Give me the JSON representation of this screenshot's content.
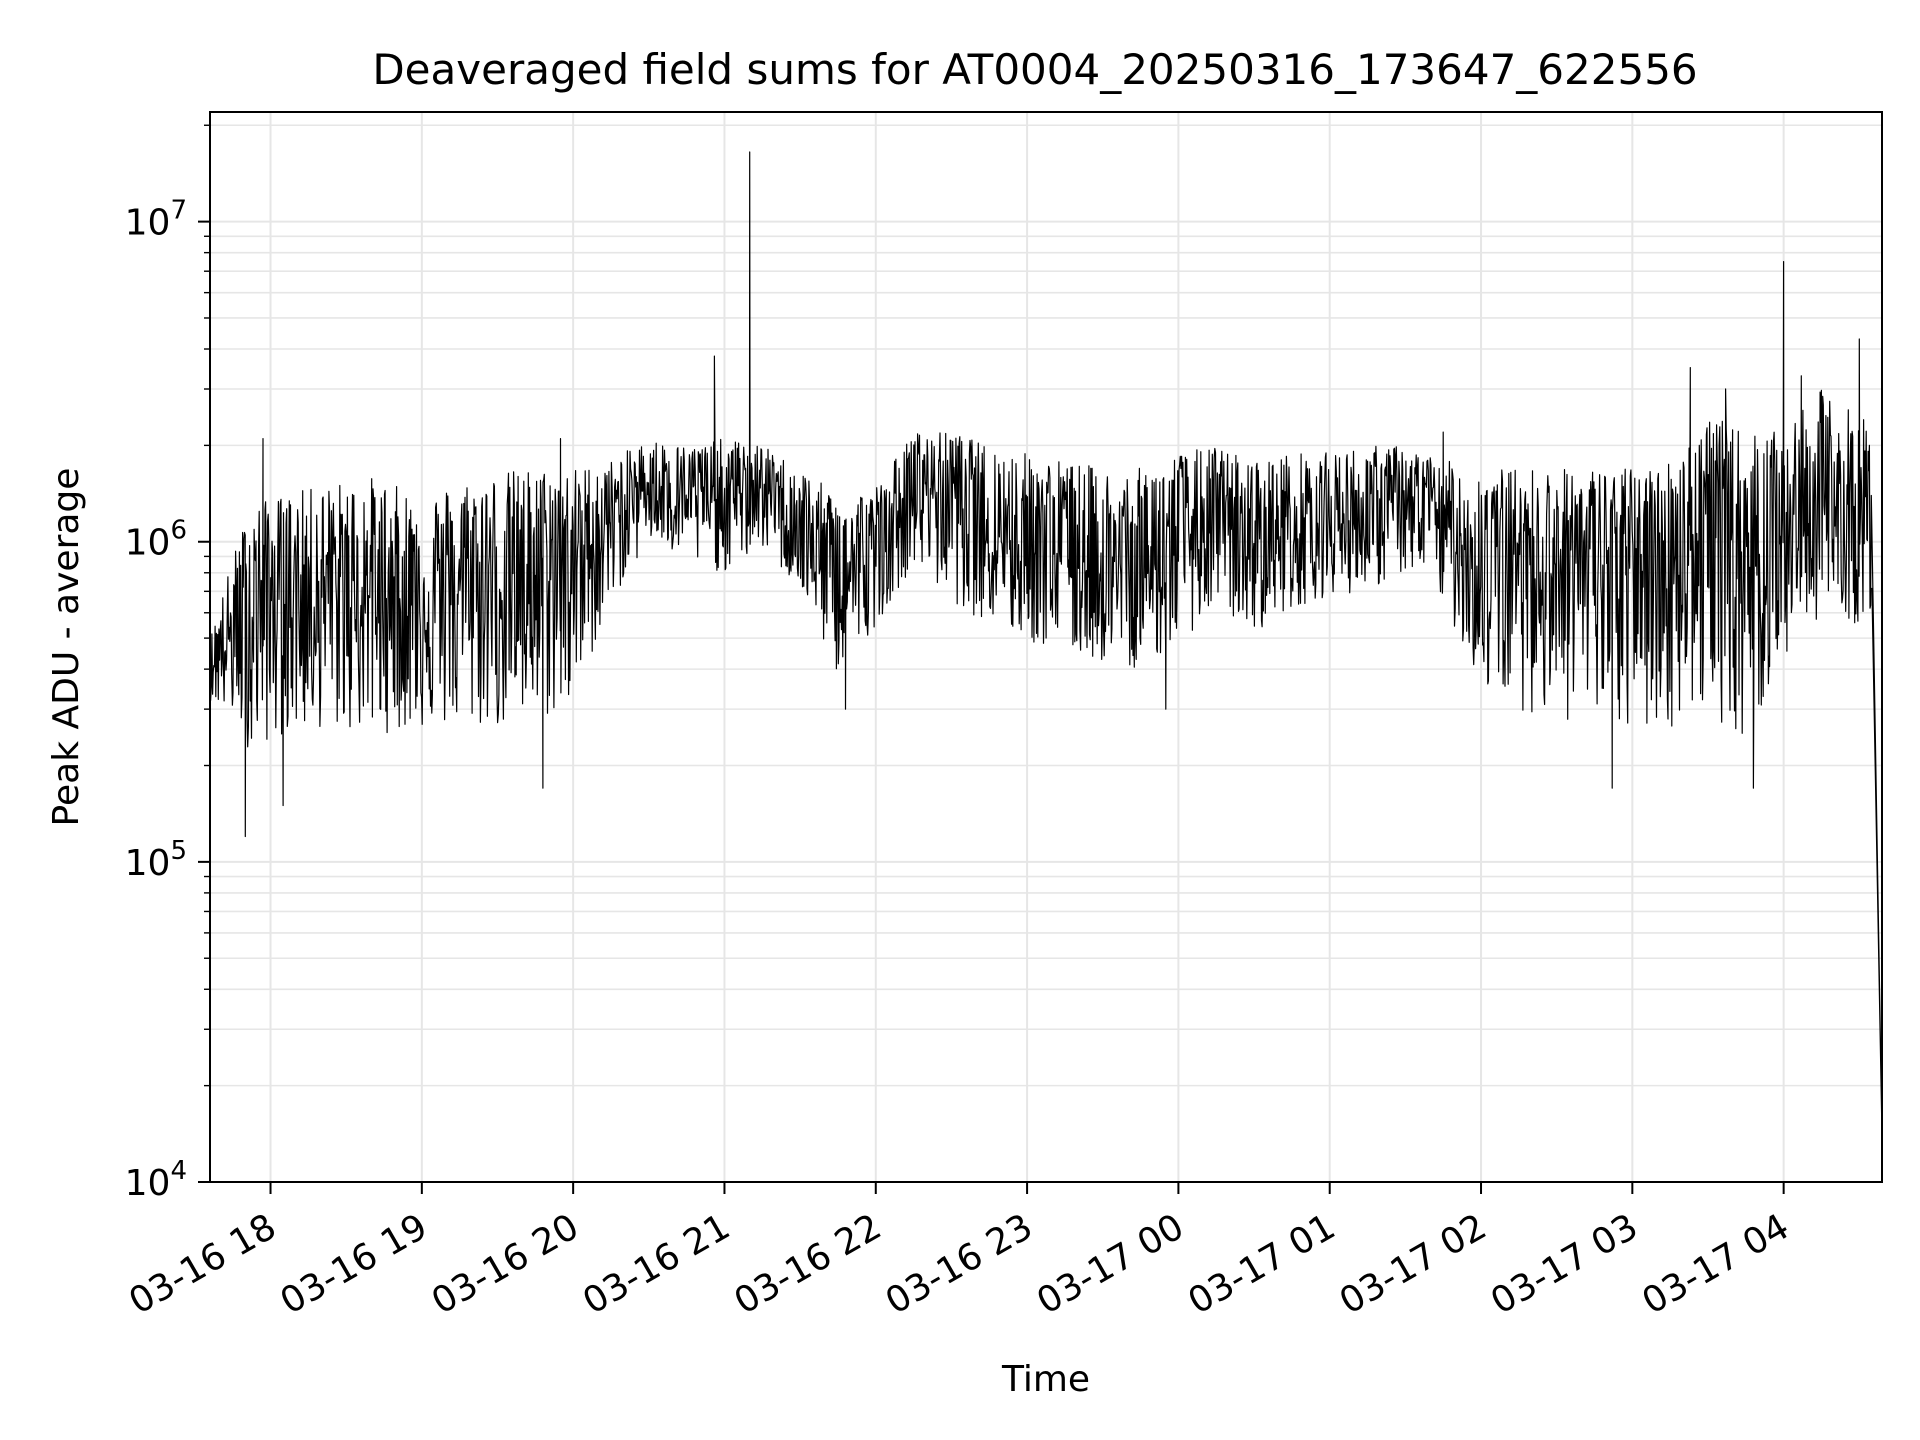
{
  "chart_data": {
    "type": "line",
    "title": "Deaveraged field sums for AT0004_20250316_173647_622556",
    "xlabel": "Time",
    "ylabel": "Peak ADU - average",
    "yscale": "log",
    "ylim": [
      10000,
      22000000
    ],
    "xlim": [
      "2025-03-16 17:36",
      "2025-03-17 04:39"
    ],
    "grid": true,
    "line_color": "#000000",
    "grid_color": "#e6e6e6",
    "x_ticks": [
      {
        "label": "03-16 18",
        "value": "2025-03-16 18:00"
      },
      {
        "label": "03-16 19",
        "value": "2025-03-16 19:00"
      },
      {
        "label": "03-16 20",
        "value": "2025-03-16 20:00"
      },
      {
        "label": "03-16 21",
        "value": "2025-03-16 21:00"
      },
      {
        "label": "03-16 22",
        "value": "2025-03-16 22:00"
      },
      {
        "label": "03-16 23",
        "value": "2025-03-16 23:00"
      },
      {
        "label": "03-17 00",
        "value": "2025-03-17 00:00"
      },
      {
        "label": "03-17 01",
        "value": "2025-03-17 01:00"
      },
      {
        "label": "03-17 02",
        "value": "2025-03-17 02:00"
      },
      {
        "label": "03-17 03",
        "value": "2025-03-17 03:00"
      },
      {
        "label": "03-17 04",
        "value": "2025-03-17 04:00"
      }
    ],
    "y_ticks": [
      {
        "base": "10",
        "exp": "4",
        "value": 10000
      },
      {
        "base": "10",
        "exp": "5",
        "value": 100000
      },
      {
        "base": "10",
        "exp": "6",
        "value": 1000000
      },
      {
        "base": "10",
        "exp": "7",
        "value": 10000000
      }
    ],
    "series": [
      {
        "x": [
          "2025-03-16 17:36",
          "2025-03-16 17:45",
          "2025-03-16 17:52",
          "2025-03-16 18:05",
          "2025-03-16 18:20",
          "2025-03-16 18:40",
          "2025-03-16 19:00",
          "2025-03-16 19:20",
          "2025-03-16 19:40",
          "2025-03-16 20:00",
          "2025-03-16 20:15",
          "2025-03-16 20:30",
          "2025-03-16 20:45",
          "2025-03-16 21:00",
          "2025-03-16 21:15",
          "2025-03-16 21:30",
          "2025-03-16 21:45",
          "2025-03-16 22:00",
          "2025-03-16 22:15",
          "2025-03-16 22:30",
          "2025-03-16 22:45",
          "2025-03-16 23:00",
          "2025-03-16 23:15",
          "2025-03-16 23:30",
          "2025-03-16 23:45",
          "2025-03-17 00:00",
          "2025-03-17 00:15",
          "2025-03-17 00:30",
          "2025-03-17 00:45",
          "2025-03-17 01:00",
          "2025-03-17 01:15",
          "2025-03-17 01:30",
          "2025-03-17 01:45",
          "2025-03-17 02:00",
          "2025-03-17 02:15",
          "2025-03-17 02:30",
          "2025-03-17 02:45",
          "2025-03-17 03:00",
          "2025-03-17 03:15",
          "2025-03-17 03:30",
          "2025-03-17 03:45",
          "2025-03-17 04:00",
          "2025-03-17 04:15",
          "2025-03-17 04:30",
          "2025-03-17 04:35"
        ],
        "mid": [
          420000,
          500000,
          650000,
          680000,
          700000,
          680000,
          660000,
          720000,
          760000,
          850000,
          1150000,
          1550000,
          1400000,
          1350000,
          1500000,
          1100000,
          750000,
          900000,
          1450000,
          1550000,
          1150000,
          1000000,
          950000,
          800000,
          780000,
          1000000,
          1100000,
          950000,
          1100000,
          1150000,
          1200000,
          1300000,
          1150000,
          850000,
          950000,
          900000,
          880000,
          850000,
          950000,
          1100000,
          900000,
          1100000,
          1300000,
          1000000,
          1050000
        ],
        "low": [
          320000,
          280000,
          220000,
          250000,
          260000,
          250000,
          260000,
          260000,
          260000,
          300000,
          650000,
          1000000,
          850000,
          800000,
          950000,
          700000,
          380000,
          550000,
          850000,
          650000,
          550000,
          480000,
          450000,
          420000,
          400000,
          480000,
          620000,
          520000,
          620000,
          680000,
          700000,
          800000,
          650000,
          350000,
          300000,
          280000,
          260000,
          250000,
          260000,
          300000,
          230000,
          420000,
          600000,
          550000,
          600000
        ],
        "high": [
          500000,
          900000,
          1300000,
          1400000,
          1500000,
          1600000,
          1400000,
          1600000,
          1700000,
          1700000,
          1800000,
          2100000,
          2000000,
          2100000,
          2000000,
          1700000,
          1400000,
          1500000,
          2200000,
          2200000,
          2000000,
          1900000,
          1800000,
          1700000,
          1700000,
          1900000,
          2000000,
          1800000,
          1900000,
          1900000,
          2000000,
          2000000,
          1800000,
          1700000,
          1700000,
          1700000,
          1700000,
          1700000,
          1800000,
          2500000,
          2200000,
          2200000,
          3000000,
          2500000,
          2500000
        ],
        "spikes": [
          {
            "x": "2025-03-16 17:50",
            "y": 120000
          },
          {
            "x": "2025-03-16 17:57",
            "y": 2100000
          },
          {
            "x": "2025-03-16 18:05",
            "y": 150000
          },
          {
            "x": "2025-03-16 19:48",
            "y": 170000
          },
          {
            "x": "2025-03-16 19:55",
            "y": 2100000
          },
          {
            "x": "2025-03-16 20:56",
            "y": 3800000
          },
          {
            "x": "2025-03-16 21:10",
            "y": 16500000
          },
          {
            "x": "2025-03-16 21:48",
            "y": 300000
          },
          {
            "x": "2025-03-16 23:55",
            "y": 300000
          },
          {
            "x": "2025-03-17 01:45",
            "y": 2200000
          },
          {
            "x": "2025-03-17 02:52",
            "y": 170000
          },
          {
            "x": "2025-03-17 03:23",
            "y": 3500000
          },
          {
            "x": "2025-03-17 03:37",
            "y": 3000000
          },
          {
            "x": "2025-03-17 03:48",
            "y": 170000
          },
          {
            "x": "2025-03-17 04:00",
            "y": 7500000
          },
          {
            "x": "2025-03-17 04:07",
            "y": 3300000
          },
          {
            "x": "2025-03-17 04:30",
            "y": 4300000
          },
          {
            "x": "2025-03-17 04:39",
            "y": 14000
          }
        ]
      }
    ]
  }
}
